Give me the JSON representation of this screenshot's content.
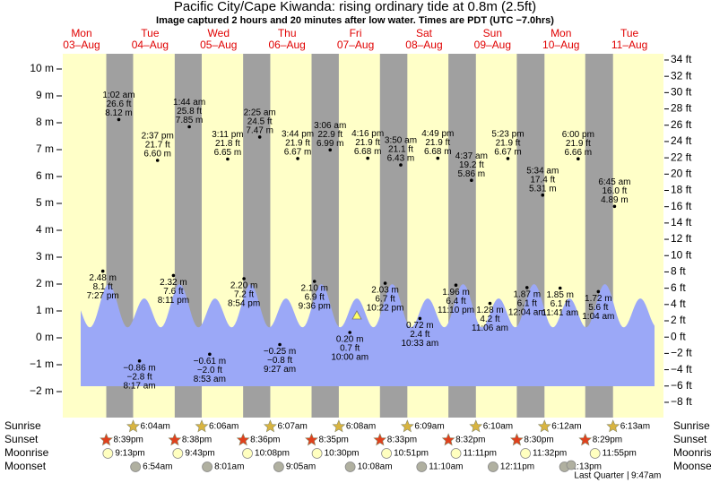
{
  "chart_data": {
    "type": "tide",
    "title": "Pacific City/Cape Kiwanda: rising  ordinary tide at 0.8m (2.5ft)",
    "subtitle": "Image captured 2 hours and 20 minutes after low water. Times are PDT (UTC −7.0hrs)",
    "days": [
      {
        "name": "Mon",
        "date": "03–Aug"
      },
      {
        "name": "Tue",
        "date": "04–Aug"
      },
      {
        "name": "Wed",
        "date": "05–Aug"
      },
      {
        "name": "Thu",
        "date": "06–Aug"
      },
      {
        "name": "Fri",
        "date": "07–Aug"
      },
      {
        "name": "Sat",
        "date": "08–Aug"
      },
      {
        "name": "Sun",
        "date": "09–Aug"
      },
      {
        "name": "Mon",
        "date": "10–Aug"
      },
      {
        "name": "Tue",
        "date": "11–Aug"
      }
    ],
    "tides": {
      "x": [
        "7:27 pm",
        "1:02 am",
        "8:17 am",
        "2:37 pm",
        "8:11 pm",
        "1:44 am",
        "8:53 am",
        "3:11 pm",
        "8:54 pm",
        "2:25 am",
        "9:27 am",
        "3:44 pm",
        "9:36 pm",
        "3:06 am",
        "10:00 am",
        "4:16 pm",
        "10:22 pm",
        "3:50 am",
        "10:33 am",
        "4:49 pm",
        "11:10 pm",
        "4:37 am",
        "11:06 am",
        "5:23 pm",
        "12:04 am",
        "5:34 am",
        "11:41 am",
        "6:00 pm",
        "1:04 am",
        "6:45 am"
      ],
      "values": [
        2.48,
        8.12,
        -0.86,
        6.6,
        2.32,
        7.85,
        -0.61,
        6.65,
        2.2,
        7.47,
        -0.25,
        6.67,
        2.1,
        6.99,
        0.2,
        6.68,
        2.03,
        6.43,
        0.72,
        6.68,
        1.96,
        5.86,
        1.28,
        6.67,
        1.87,
        5.31,
        1.85,
        6.66,
        1.72,
        4.89
      ],
      "value_labels": [
        "2.48 m",
        "8.12 m",
        "−0.86 m",
        "6.60 m",
        "2.32 m",
        "7.85 m",
        "−0.61 m",
        "6.65 m",
        "2.20 m",
        "7.47 m",
        "−0.25 m",
        "6.67 m",
        "2.10 m",
        "6.99 m",
        "0.20 m",
        "6.68 m",
        "2.03 m",
        "6.43 m",
        "0.72 m",
        "6.68 m",
        "1.96 m",
        "5.86 m",
        "1.28 m",
        "6.67 m",
        "1.87 m",
        "5.31 m",
        "1.85 m",
        "6.66 m",
        "1.72 m",
        "4.89 m"
      ],
      "ft_labels": [
        "8.1 ft",
        "26.6 ft",
        "−2.8 ft",
        "21.7 ft",
        "7.6 ft",
        "25.8 ft",
        "−2.0 ft",
        "21.8 ft",
        "7.2 ft",
        "24.5 ft",
        "−0.8 ft",
        "21.9 ft",
        "6.9 ft",
        "22.9 ft",
        "0.7 ft",
        "21.9 ft",
        "6.7 ft",
        "21.1 ft",
        "2.4 ft",
        "21.9 ft",
        "6.4 ft",
        "19.2 ft",
        "4.2 ft",
        "21.9 ft",
        "6.1 ft",
        "17.4 ft",
        "6.1 ft",
        "21.9 ft",
        "5.6 ft",
        "16.0 ft"
      ]
    },
    "ylim": [
      -2.8,
      10.75
    ],
    "yticks": [
      {
        "value": 10,
        "label": "10 m"
      },
      {
        "value": 9,
        "label": "9 m"
      },
      {
        "value": 8,
        "label": "8 m"
      },
      {
        "value": 7,
        "label": "7 m"
      },
      {
        "value": 6,
        "label": "6 m"
      },
      {
        "value": 5,
        "label": "5 m"
      },
      {
        "value": 4,
        "label": "4 m"
      },
      {
        "value": 3,
        "label": "3 m"
      },
      {
        "value": 2,
        "label": "2 m"
      },
      {
        "value": 1,
        "label": "1 m"
      },
      {
        "value": 0,
        "label": "0 m"
      },
      {
        "value": -1,
        "label": "−1 m"
      },
      {
        "value": -2,
        "label": "−2 m"
      }
    ],
    "y2lim": [
      -9.19,
      35.27
    ],
    "y2ticks": [
      {
        "value": 34,
        "label": "34 ft"
      },
      {
        "value": 32,
        "label": "32 ft"
      },
      {
        "value": 30,
        "label": "30 ft"
      },
      {
        "value": 28,
        "label": "28 ft"
      },
      {
        "value": 26,
        "label": "26 ft"
      },
      {
        "value": 24,
        "label": "24 ft"
      },
      {
        "value": 22,
        "label": "22 ft"
      },
      {
        "value": 20,
        "label": "20 ft"
      },
      {
        "value": 18,
        "label": "18 ft"
      },
      {
        "value": 16,
        "label": "16 ft"
      },
      {
        "value": 14,
        "label": "14 ft"
      },
      {
        "value": 12,
        "label": "12 ft"
      },
      {
        "value": 10,
        "label": "10 ft"
      },
      {
        "value": 8,
        "label": "8 ft"
      },
      {
        "value": 6,
        "label": "6 ft"
      },
      {
        "value": 4,
        "label": "4 ft"
      },
      {
        "value": 2,
        "label": "2 ft"
      },
      {
        "value": 0,
        "label": "0 ft"
      },
      {
        "value": -2,
        "label": "−2 ft"
      },
      {
        "value": -4,
        "label": "−4 ft"
      },
      {
        "value": -6,
        "label": "−6 ft"
      },
      {
        "value": -8,
        "label": "−8 ft"
      }
    ],
    "sunrise": {
      "label": "Sunrise",
      "x": [
        "6:04am",
        "6:06am",
        "6:07am",
        "6:08am",
        "6:09am",
        "6:10am",
        "6:12am",
        "6:13am"
      ]
    },
    "sunset": {
      "label": "Sunset",
      "x": [
        "8:39pm",
        "8:38pm",
        "8:36pm",
        "8:35pm",
        "8:33pm",
        "8:32pm",
        "8:30pm",
        "8:29pm"
      ]
    },
    "moonrise": {
      "label": "Moonrise",
      "x": [
        "9:13pm",
        "9:43pm",
        "10:08pm",
        "10:30pm",
        "10:51pm",
        "11:11pm",
        "11:32pm",
        "11:55pm"
      ]
    },
    "moonset": {
      "label": "Moonset",
      "x": [
        "6:54am",
        "8:01am",
        "9:05am",
        "10:08am",
        "11:10am",
        "12:11pm",
        "1:13pm"
      ]
    },
    "moon_phase": {
      "name": "Last Quarter",
      "time": "9:47am"
    }
  }
}
